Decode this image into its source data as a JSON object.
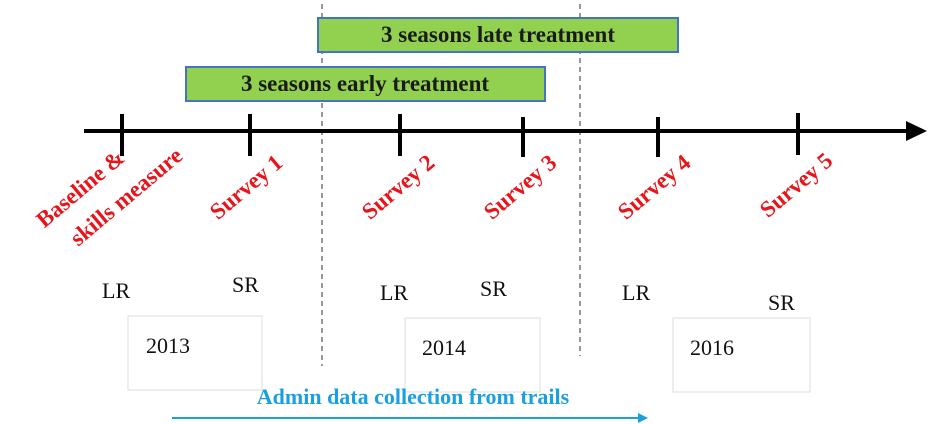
{
  "treatments": {
    "late": "3 seasons late treatment",
    "early": "3 seasons early treatment"
  },
  "baseline": [
    "Baseline &",
    "skills measure"
  ],
  "surveys": [
    "Survey 1",
    "Survey 2",
    "Survey 3",
    "Survey 4",
    "Survey 5"
  ],
  "seasons": [
    "LR",
    "SR",
    "LR",
    "SR",
    "LR",
    "SR"
  ],
  "years": [
    "2013",
    "2014",
    "2016"
  ],
  "admin": "Admin data collection from trails"
}
